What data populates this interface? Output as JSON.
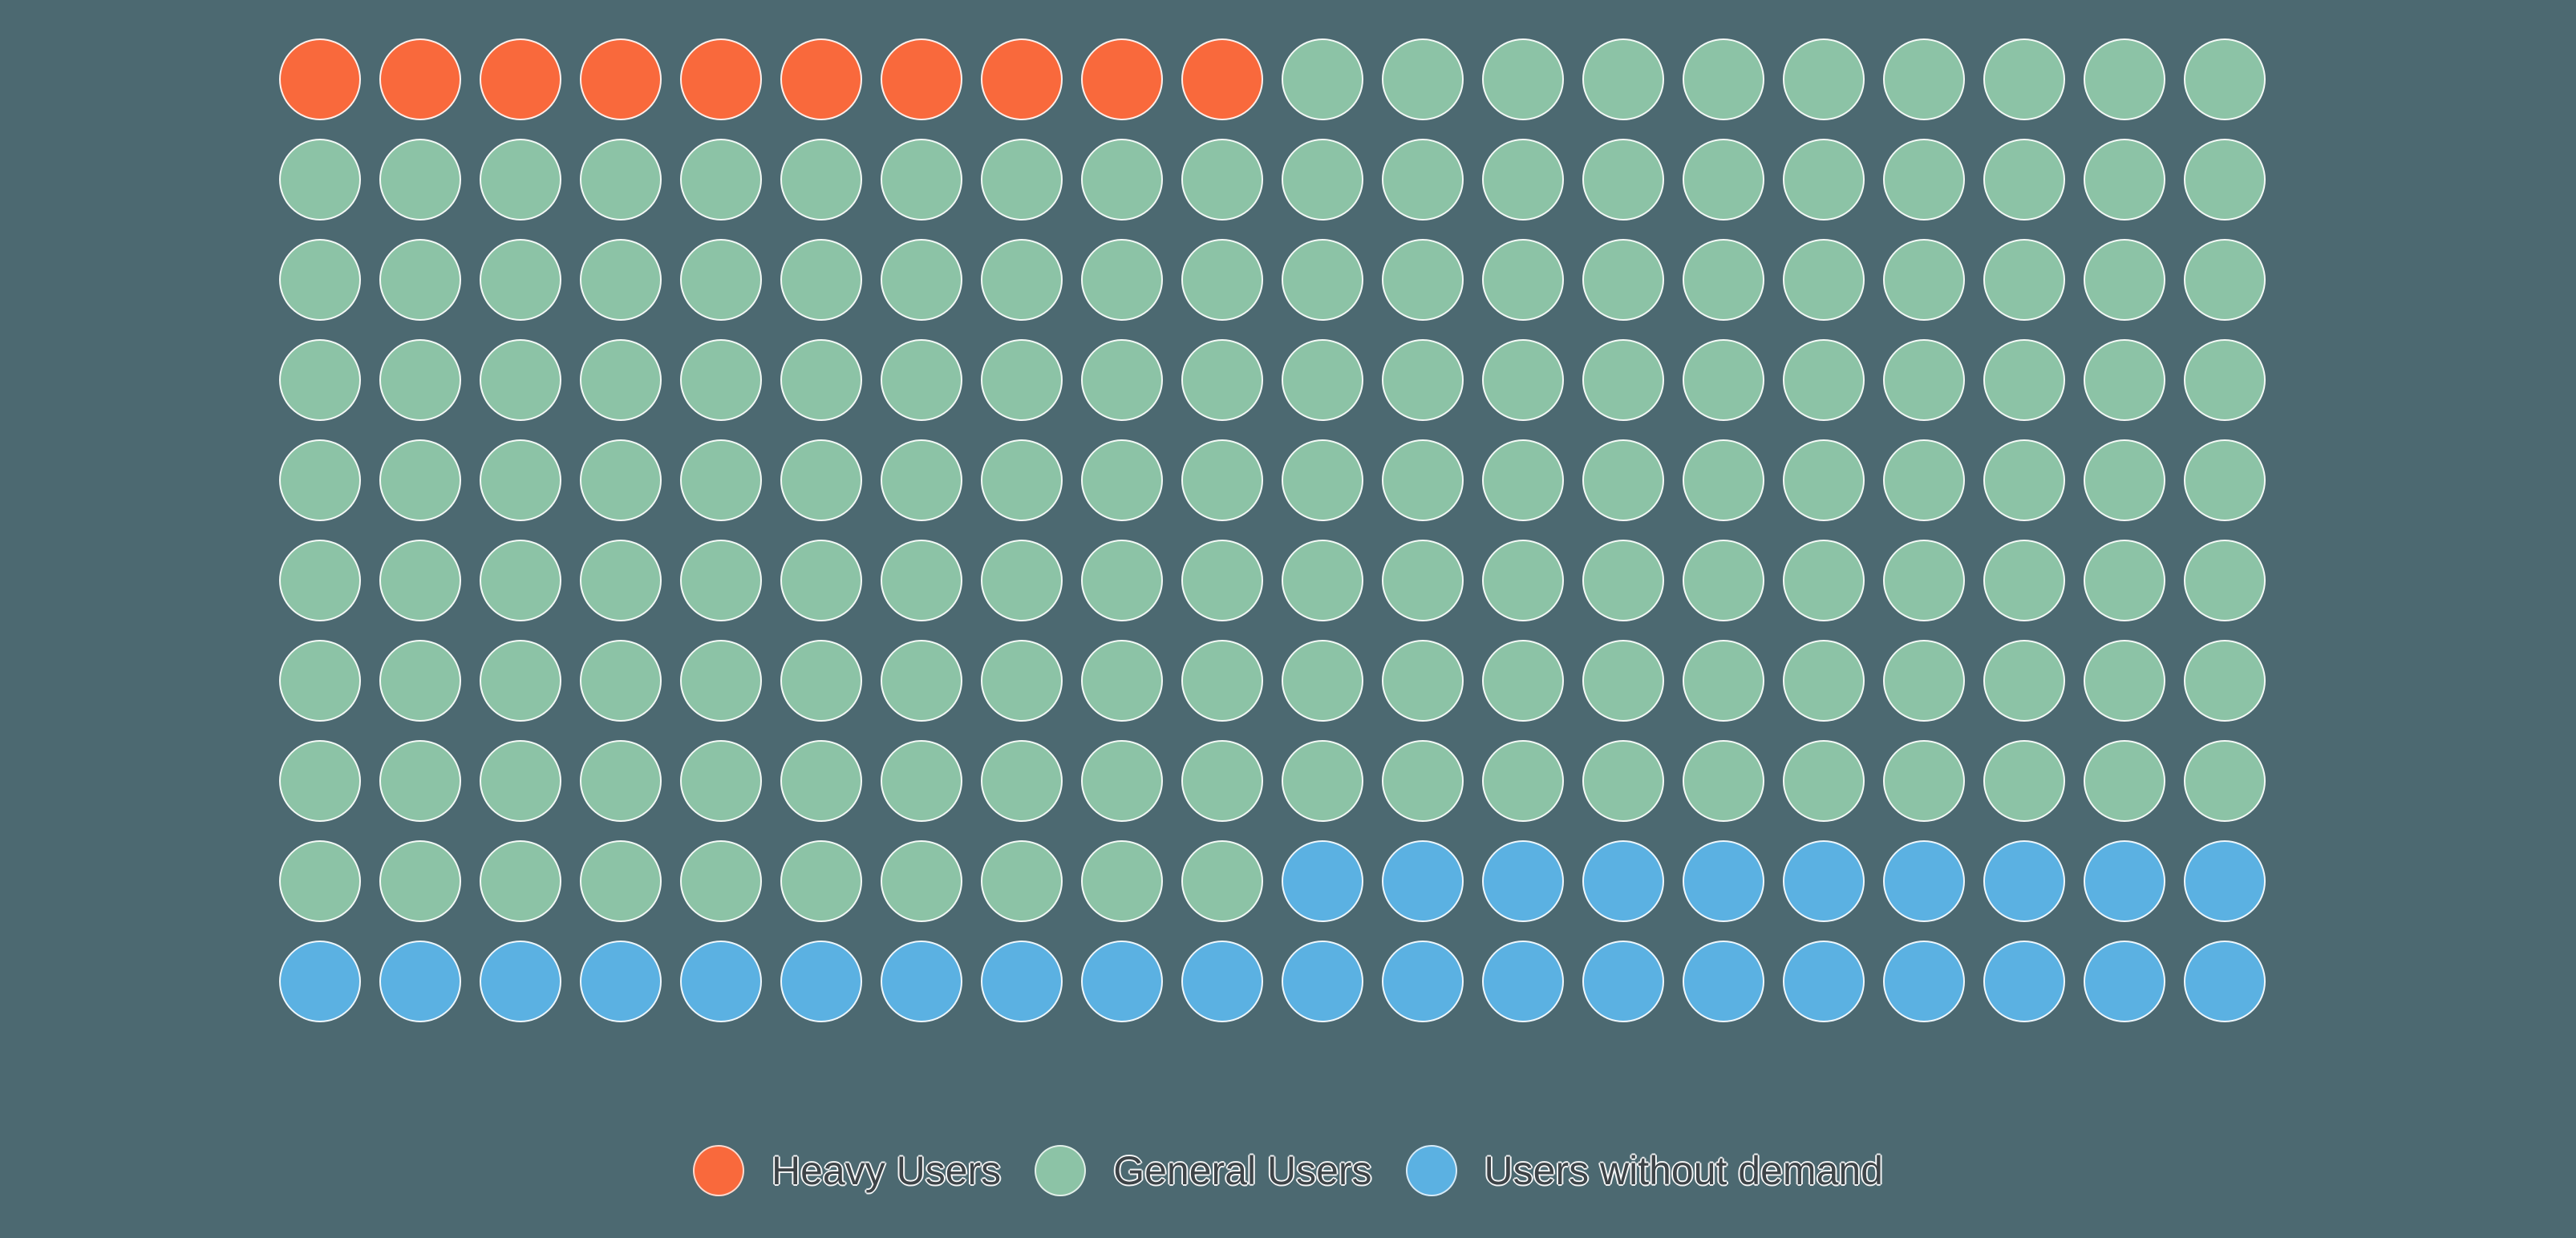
{
  "background_color": "#4C6971",
  "chart_data": {
    "type": "waffle",
    "title": "",
    "total_dots": 200,
    "grid": {
      "rows": 10,
      "columns": 20,
      "fill_order": "row-major, left-to-right, top-to-bottom"
    },
    "categories": [
      "Heavy Users",
      "General Users",
      "Users without demand"
    ],
    "values": [
      10,
      160,
      30
    ],
    "percentages": [
      5,
      80,
      15
    ],
    "colors": [
      "#F9693C",
      "#8CC3A6",
      "#5BB1E2"
    ],
    "dot_border_color": "#FFFFFF",
    "legend_position": "bottom-center"
  },
  "legend": {
    "items": [
      {
        "label": "Heavy Users",
        "color": "#F9693C",
        "slug": "heavy-users"
      },
      {
        "label": "General Users",
        "color": "#8CC3A6",
        "slug": "general-users"
      },
      {
        "label": "Users without demand",
        "color": "#5BB1E2",
        "slug": "users-without-demand"
      }
    ]
  }
}
